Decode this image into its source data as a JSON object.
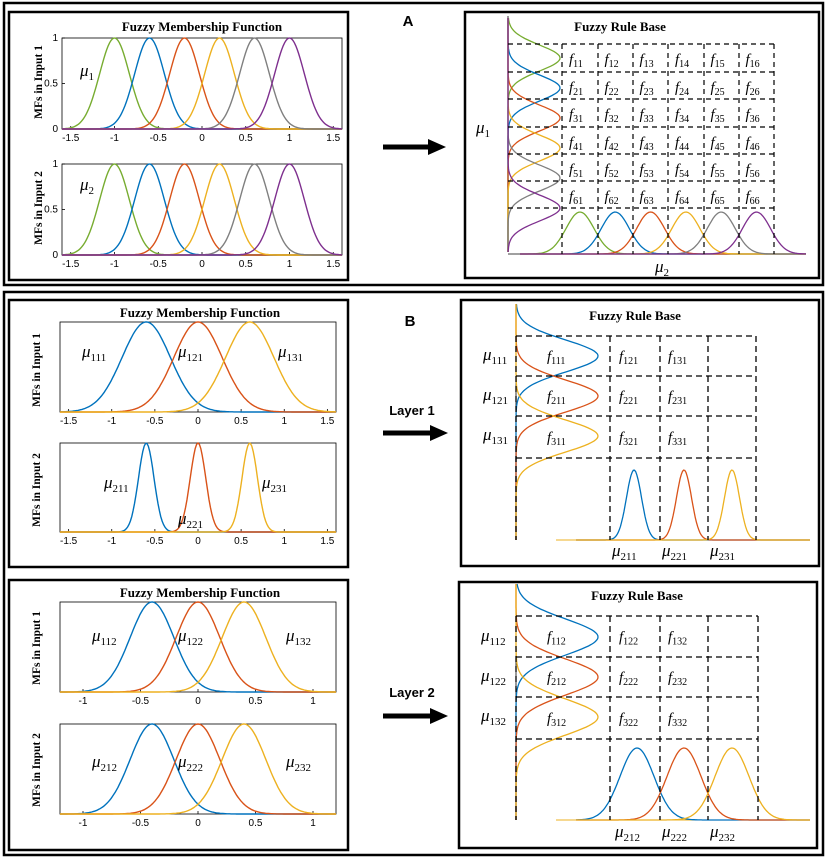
{
  "panel_a": {
    "letter": "A",
    "left_title": "Fuzzy Membership Function",
    "ylabel_input1": "MFs in Input 1",
    "ylabel_input2": "MFs in Input 2",
    "mu_label_1": "μ",
    "mu_sub_1": "1",
    "mu_label_2": "μ",
    "mu_sub_2": "2",
    "x_ticks": [
      "-1.5",
      "-1",
      "-0.5",
      "0",
      "0.5",
      "1",
      "1.5"
    ],
    "y_ticks": [
      "0",
      "0.5",
      "1"
    ],
    "right_title": "Fuzzy Rule Base",
    "rule_mu_row": "μ",
    "rule_mu_row_sub": "1",
    "rule_mu_col": "μ",
    "rule_mu_col_sub": "2",
    "rules": [
      [
        "11",
        "12",
        "13",
        "14",
        "15",
        "16"
      ],
      [
        "21",
        "22",
        "23",
        "24",
        "25",
        "26"
      ],
      [
        "31",
        "32",
        "33",
        "34",
        "35",
        "36"
      ],
      [
        "41",
        "42",
        "43",
        "44",
        "45",
        "46"
      ],
      [
        "51",
        "52",
        "53",
        "54",
        "55",
        "56"
      ],
      [
        "61",
        "62",
        "63",
        "64",
        "65",
        "66"
      ]
    ]
  },
  "panel_b": {
    "letter": "B",
    "layer1_label": "Layer 1",
    "layer2_label": "Layer 2",
    "left_title": "Fuzzy Membership Function",
    "right_title": "Fuzzy Rule Base",
    "ylabel_input1": "MFs in Input 1",
    "ylabel_input2": "MFs in Input 2",
    "layer1_x_ticks": [
      "-1.5",
      "-1",
      "-0.5",
      "0",
      "0.5",
      "1",
      "1.5"
    ],
    "layer2_x_ticks": [
      "-1",
      "-0.5",
      "0",
      "0.5",
      "1"
    ],
    "layer1_mu_in1": [
      "111",
      "121",
      "131"
    ],
    "layer1_mu_in2": [
      "211",
      "221",
      "231"
    ],
    "layer2_mu_in1": [
      "112",
      "122",
      "132"
    ],
    "layer2_mu_in2": [
      "212",
      "222",
      "232"
    ],
    "layer1_rules": [
      [
        "111",
        "121",
        "131"
      ],
      [
        "211",
        "221",
        "231"
      ],
      [
        "311",
        "321",
        "331"
      ]
    ],
    "layer2_rules": [
      [
        "112",
        "122",
        "132"
      ],
      [
        "212",
        "222",
        "232"
      ],
      [
        "312",
        "322",
        "332"
      ]
    ],
    "mu": "μ",
    "f": "f"
  },
  "colors": {
    "green": "#77ac30",
    "blue": "#0072bd",
    "orange": "#d95319",
    "yellow": "#edb120",
    "gray": "#7f7f7f",
    "purple": "#7e2f8e"
  },
  "chart_data": [
    {
      "type": "line",
      "title": "Fuzzy Membership Function",
      "ylabel": "MFs in Input 1",
      "xlim": [
        -1.6,
        1.6
      ],
      "ylim": [
        0,
        1
      ],
      "series": [
        {
          "name": "green",
          "center": -1.0,
          "sigma": 0.17
        },
        {
          "name": "blue",
          "center": -0.6,
          "sigma": 0.17
        },
        {
          "name": "orange",
          "center": -0.2,
          "sigma": 0.17
        },
        {
          "name": "yellow",
          "center": 0.2,
          "sigma": 0.17
        },
        {
          "name": "gray",
          "center": 0.6,
          "sigma": 0.17
        },
        {
          "name": "purple",
          "center": 1.0,
          "sigma": 0.17
        }
      ]
    },
    {
      "type": "line",
      "title": "",
      "ylabel": "MFs in Input 2",
      "xlim": [
        -1.6,
        1.6
      ],
      "ylim": [
        0,
        1
      ],
      "series": [
        {
          "name": "green",
          "center": -1.0,
          "sigma": 0.17
        },
        {
          "name": "blue",
          "center": -0.6,
          "sigma": 0.17
        },
        {
          "name": "orange",
          "center": -0.2,
          "sigma": 0.17
        },
        {
          "name": "yellow",
          "center": 0.2,
          "sigma": 0.17
        },
        {
          "name": "gray",
          "center": 0.6,
          "sigma": 0.17
        },
        {
          "name": "purple",
          "center": 1.0,
          "sigma": 0.17
        }
      ]
    },
    {
      "type": "line",
      "title": "Fuzzy Membership Function",
      "ylabel": "MFs in Input 1",
      "xlim": [
        -1.6,
        1.6
      ],
      "ylim": [
        0,
        1
      ],
      "series": [
        {
          "name": "blue",
          "center": -0.6,
          "sigma": 0.28
        },
        {
          "name": "orange",
          "center": 0.0,
          "sigma": 0.28
        },
        {
          "name": "yellow",
          "center": 0.6,
          "sigma": 0.28
        }
      ]
    },
    {
      "type": "line",
      "title": "",
      "ylabel": "MFs in Input 2",
      "xlim": [
        -1.6,
        1.6
      ],
      "ylim": [
        0,
        1
      ],
      "series": [
        {
          "name": "blue",
          "center": -0.6,
          "sigma": 0.09
        },
        {
          "name": "orange",
          "center": 0.0,
          "sigma": 0.09
        },
        {
          "name": "yellow",
          "center": 0.6,
          "sigma": 0.09
        }
      ]
    },
    {
      "type": "line",
      "title": "Fuzzy Membership Function",
      "ylabel": "MFs in Input 1",
      "xlim": [
        -1.2,
        1.2
      ],
      "ylim": [
        0,
        1
      ],
      "series": [
        {
          "name": "blue",
          "center": -0.4,
          "sigma": 0.19
        },
        {
          "name": "orange",
          "center": 0.0,
          "sigma": 0.19
        },
        {
          "name": "yellow",
          "center": 0.4,
          "sigma": 0.19
        }
      ]
    },
    {
      "type": "line",
      "title": "",
      "ylabel": "MFs in Input 2",
      "xlim": [
        -1.2,
        1.2
      ],
      "ylim": [
        0,
        1
      ],
      "series": [
        {
          "name": "blue",
          "center": -0.4,
          "sigma": 0.19
        },
        {
          "name": "orange",
          "center": 0.0,
          "sigma": 0.19
        },
        {
          "name": "yellow",
          "center": 0.4,
          "sigma": 0.19
        }
      ]
    }
  ]
}
